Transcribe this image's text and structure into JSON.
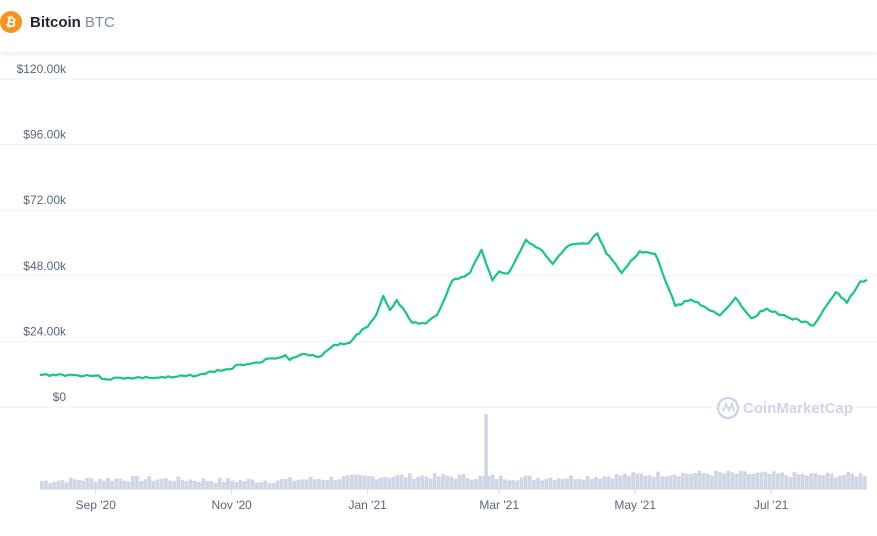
{
  "header": {
    "coin_name": "Bitcoin",
    "coin_symbol": "BTC",
    "logo_icon": "bitcoin-logo-icon",
    "logo_color": "#f7931a"
  },
  "watermark": {
    "text": "CoinMarketCap",
    "icon": "coinmarketcap-logo-icon"
  },
  "colors": {
    "line": "#16c784",
    "volume": "#cfd6e4",
    "grid": "#eff2f5",
    "axis_text": "#58667e"
  },
  "chart_data": {
    "type": "line",
    "title": "",
    "xlabel": "",
    "ylabel": "",
    "ylim": [
      0,
      120000
    ],
    "y_ticks": [
      0,
      24000,
      48000,
      72000,
      96000,
      120000
    ],
    "y_tick_labels": [
      "$0",
      "$24.00k",
      "$48.00k",
      "$72.00k",
      "$96.00k",
      "$120.00k"
    ],
    "x_ticks": [
      "2020-09-01",
      "2020-11-01",
      "2021-01-01",
      "2021-03-01",
      "2021-05-01",
      "2021-07-01"
    ],
    "x_tick_labels": [
      "Sep '20",
      "Nov '20",
      "Jan '21",
      "Mar '21",
      "May '21",
      "Jul '21"
    ],
    "grid": true,
    "series": [
      {
        "kind": "price",
        "points": [
          [
            "2020-08-07",
            11700
          ],
          [
            "2020-08-17",
            11800
          ],
          [
            "2020-08-24",
            11600
          ],
          [
            "2020-09-01",
            11500
          ],
          [
            "2020-09-05",
            10200
          ],
          [
            "2020-09-15",
            10700
          ],
          [
            "2020-09-25",
            10700
          ],
          [
            "2020-10-05",
            10800
          ],
          [
            "2020-10-12",
            11400
          ],
          [
            "2020-10-20",
            12000
          ],
          [
            "2020-10-23",
            13000
          ],
          [
            "2020-10-31",
            13800
          ],
          [
            "2020-11-05",
            15500
          ],
          [
            "2020-11-12",
            16300
          ],
          [
            "2020-11-19",
            17800
          ],
          [
            "2020-11-25",
            19000
          ],
          [
            "2020-11-27",
            17200
          ],
          [
            "2020-12-02",
            19200
          ],
          [
            "2020-12-10",
            18300
          ],
          [
            "2020-12-17",
            22800
          ],
          [
            "2020-12-24",
            23500
          ],
          [
            "2020-12-27",
            26500
          ],
          [
            "2021-01-01",
            29400
          ],
          [
            "2021-01-05",
            34000
          ],
          [
            "2021-01-08",
            40700
          ],
          [
            "2021-01-11",
            35500
          ],
          [
            "2021-01-14",
            39200
          ],
          [
            "2021-01-21",
            30800
          ],
          [
            "2021-01-27",
            30500
          ],
          [
            "2021-02-01",
            33500
          ],
          [
            "2021-02-08",
            46300
          ],
          [
            "2021-02-12",
            47500
          ],
          [
            "2021-02-16",
            49200
          ],
          [
            "2021-02-21",
            57500
          ],
          [
            "2021-02-26",
            46300
          ],
          [
            "2021-03-01",
            49600
          ],
          [
            "2021-03-05",
            48800
          ],
          [
            "2021-03-09",
            54800
          ],
          [
            "2021-03-13",
            61200
          ],
          [
            "2021-03-19",
            58000
          ],
          [
            "2021-03-25",
            52300
          ],
          [
            "2021-04-01",
            59000
          ],
          [
            "2021-04-10",
            59800
          ],
          [
            "2021-04-14",
            63500
          ],
          [
            "2021-04-18",
            56200
          ],
          [
            "2021-04-25",
            49000
          ],
          [
            "2021-05-03",
            57000
          ],
          [
            "2021-05-10",
            56000
          ],
          [
            "2021-05-13",
            49700
          ],
          [
            "2021-05-19",
            37000
          ],
          [
            "2021-05-26",
            39300
          ],
          [
            "2021-06-01",
            36700
          ],
          [
            "2021-06-08",
            33500
          ],
          [
            "2021-06-15",
            40000
          ],
          [
            "2021-06-22",
            32500
          ],
          [
            "2021-06-29",
            36000
          ],
          [
            "2021-07-08",
            33000
          ],
          [
            "2021-07-20",
            29800
          ],
          [
            "2021-07-26",
            37300
          ],
          [
            "2021-07-30",
            42000
          ],
          [
            "2021-08-04",
            38100
          ],
          [
            "2021-08-10",
            46000
          ],
          [
            "2021-08-13",
            46500
          ]
        ]
      },
      {
        "kind": "volume",
        "x_range": [
          "2020-08-07",
          "2021-08-13"
        ],
        "spikes": [
          [
            "2021-02-23",
            350
          ]
        ]
      }
    ]
  }
}
